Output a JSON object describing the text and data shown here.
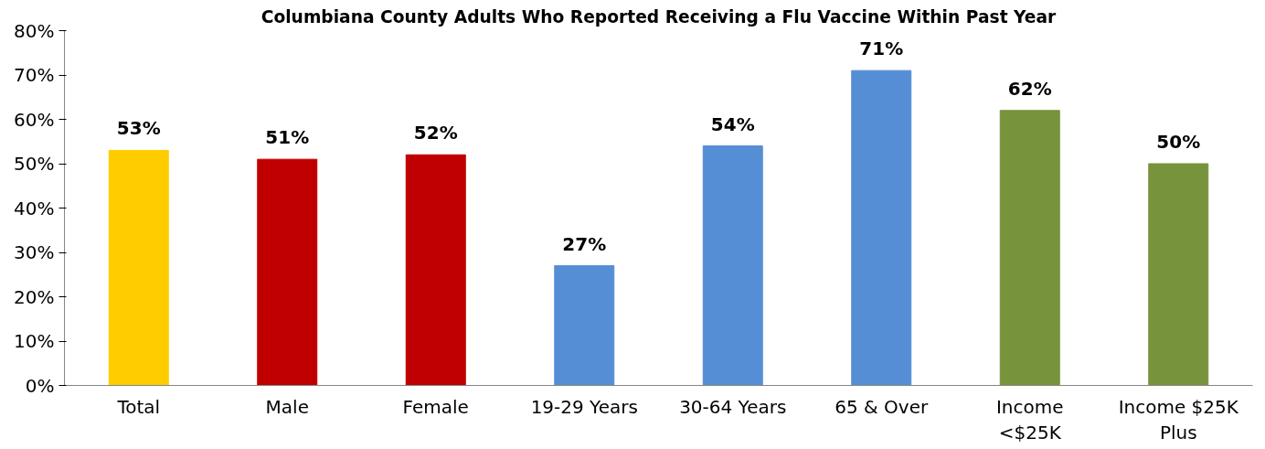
{
  "chart_data": {
    "type": "bar",
    "title": "Columbiana County Adults Who Reported Receiving a Flu Vaccine Within Past Year",
    "categories": [
      "Total",
      "Male",
      "Female",
      "19-29 Years",
      "30-64 Years",
      "65 & Over",
      "Income\n<$25K",
      "Income $25K\nPlus"
    ],
    "values": [
      53,
      51,
      52,
      27,
      54,
      71,
      62,
      50
    ],
    "colors": [
      "#ffcc00",
      "#c00000",
      "#c00000",
      "#558ed5",
      "#558ed5",
      "#558ed5",
      "#77933c",
      "#77933c"
    ],
    "value_labels": [
      "53%",
      "51%",
      "52%",
      "27%",
      "54%",
      "71%",
      "62%",
      "50%"
    ],
    "ylim": [
      0,
      80
    ],
    "yticks": [
      {
        "value": 0,
        "label": "0%"
      },
      {
        "value": 10,
        "label": "10%"
      },
      {
        "value": 20,
        "label": "20%"
      },
      {
        "value": 30,
        "label": "30%"
      },
      {
        "value": 40,
        "label": "40%"
      },
      {
        "value": 50,
        "label": "50%"
      },
      {
        "value": 60,
        "label": "60%"
      },
      {
        "value": 70,
        "label": "70%"
      },
      {
        "value": 80,
        "label": "80%"
      }
    ],
    "grid": false
  }
}
